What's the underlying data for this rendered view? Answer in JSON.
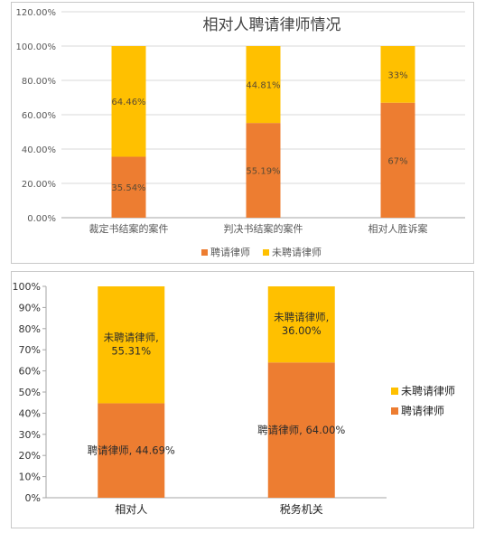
{
  "colors": {
    "hired": "#ED7D31",
    "not_hired": "#FFC000",
    "grid": "#D9D9D9",
    "axis": "#A6A6A6"
  },
  "chart_data": [
    {
      "type": "bar",
      "stacked": true,
      "title": "相对人聘请律师情况",
      "categories": [
        "裁定书结案的案件",
        "判决书结案的案件",
        "相对人胜诉案"
      ],
      "series": [
        {
          "name": "聘请律师",
          "values": [
            35.54,
            55.19,
            67
          ],
          "labels": [
            "35.54%",
            "55.19%",
            "67%"
          ],
          "color": "#ED7D31"
        },
        {
          "name": "未聘请律师",
          "values": [
            64.46,
            44.81,
            33
          ],
          "labels": [
            "64.46%",
            "44.81%",
            "33%"
          ],
          "color": "#FFC000"
        }
      ],
      "ylim": [
        0,
        120
      ],
      "yticks": [
        0,
        20,
        40,
        60,
        80,
        100,
        120
      ],
      "ytick_labels": [
        "0.00%",
        "20.00%",
        "40.00%",
        "60.00%",
        "80.00%",
        "100.00%",
        "120.00%"
      ],
      "grid": true,
      "legend": {
        "position": "bottom",
        "entries": [
          "聘请律师",
          "未聘请律师"
        ]
      }
    },
    {
      "type": "bar",
      "stacked": true,
      "title": "",
      "categories": [
        "相对人",
        "税务机关"
      ],
      "series": [
        {
          "name": "聘请律师",
          "values": [
            44.69,
            64.0
          ],
          "labels": [
            "聘请律师, 44.69%",
            "聘请律师, 64.00%"
          ],
          "color": "#ED7D31"
        },
        {
          "name": "未聘请律师",
          "values": [
            55.31,
            36.0
          ],
          "labels": [
            "未聘请律师,\n55.31%",
            "未聘请律师,\n36.00%"
          ],
          "color": "#FFC000"
        }
      ],
      "ylim": [
        0,
        100
      ],
      "yticks": [
        0,
        10,
        20,
        30,
        40,
        50,
        60,
        70,
        80,
        90,
        100
      ],
      "ytick_labels": [
        "0%",
        "10%",
        "20%",
        "30%",
        "40%",
        "50%",
        "60%",
        "70%",
        "80%",
        "90%",
        "100%"
      ],
      "grid": false,
      "legend": {
        "position": "right",
        "entries": [
          "未聘请律师",
          "聘请律师"
        ]
      }
    }
  ]
}
